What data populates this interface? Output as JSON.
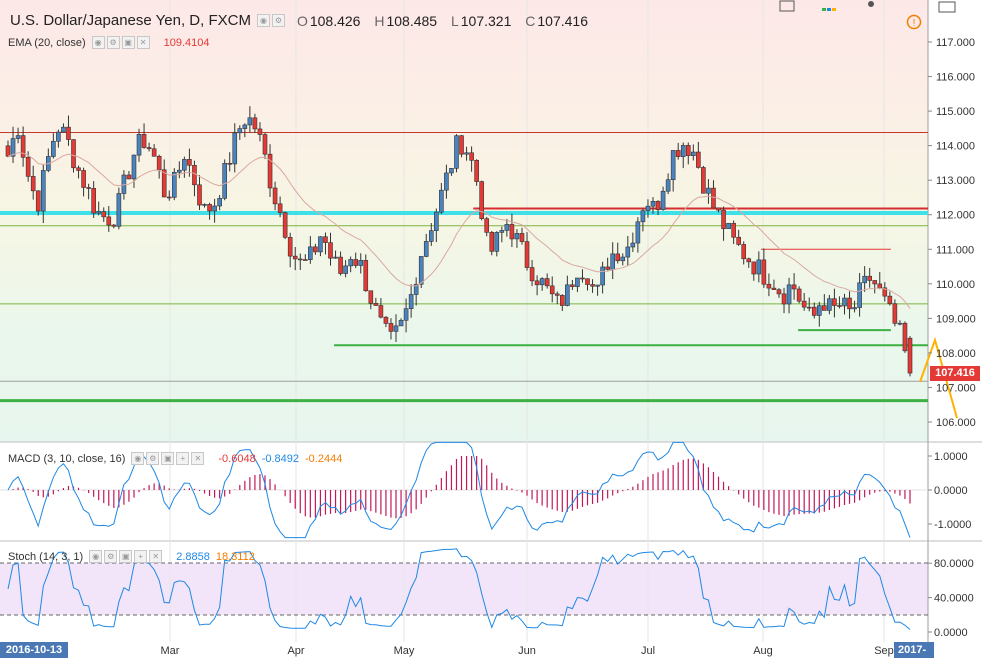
{
  "header": {
    "symbol": "U.S. Dollar/Japanese Yen, D, FXCM",
    "o_label": "O",
    "o": "108.426",
    "h_label": "H",
    "h": "108.485",
    "l_label": "L",
    "l": "107.321",
    "c_label": "C",
    "c": "107.416"
  },
  "ema": {
    "label": "EMA (20, close)",
    "value": "109.4104",
    "color": "#e53935"
  },
  "macd": {
    "label": "MACD (3, 10, close, 16)",
    "v1": "-0.6048",
    "v2": "-0.8492",
    "v3": "-0.2444",
    "c1": "#e53935",
    "c2": "#1e88e5",
    "c3": "#f57c00"
  },
  "stoch": {
    "label": "Stoch (14, 3, 1)",
    "v1": "2.8858",
    "v2": "18.3112",
    "c1": "#1e88e5",
    "c2": "#f57c00"
  },
  "price_badge": "107.416",
  "date_badge": "2016-10-13",
  "date_badge_right": "2017-",
  "colors": {
    "up": "#4a84c0",
    "down": "#e53935",
    "ema": "#d9a8a0",
    "macd_line": "#1e88e5",
    "hist": "#c2185b",
    "stoch": "#1e88e5",
    "cyan": "#40e0e8",
    "green": "#3cb043",
    "red": "#d32f2f",
    "orange": "#ffb300"
  },
  "chart_data": {
    "type": "candlestick",
    "price_axis": [
      "117.000",
      "116.000",
      "115.000",
      "114.000",
      "113.000",
      "112.000",
      "111.000",
      "110.000",
      "109.000",
      "108.000",
      "107.000",
      "106.000"
    ],
    "macd_axis": [
      "1.0000",
      "0.0000",
      "-1.0000"
    ],
    "stoch_axis": [
      "80.0000",
      "40.0000",
      "0.0000"
    ],
    "x_labels": [
      "Mar",
      "Apr",
      "May",
      "Jun",
      "Jul",
      "Aug",
      "Sep"
    ],
    "ylim": [
      105.5,
      117.4
    ],
    "horizontal_levels": [
      {
        "price": 114.38,
        "color": "#c0392b",
        "width": 1
      },
      {
        "price": 112.05,
        "color": "#40e0e8",
        "width": 4
      },
      {
        "price": 111.68,
        "color": "#7cb342",
        "width": 1
      },
      {
        "price": 109.42,
        "color": "#7cb342",
        "width": 1
      },
      {
        "price": 107.18,
        "color": "#9e9e9e",
        "width": 1
      },
      {
        "price": 106.62,
        "color": "#3cb043",
        "width": 3
      }
    ],
    "trend_segments": [
      {
        "from": [
          0.51,
          112.18
        ],
        "to": [
          1.0,
          112.18
        ],
        "color": "#d32f2f",
        "width": 2
      },
      {
        "from": [
          0.82,
          111.0
        ],
        "to": [
          0.96,
          111.0
        ],
        "color": "#e53935",
        "width": 1
      },
      {
        "from": [
          0.36,
          108.22
        ],
        "to": [
          1.0,
          108.22
        ],
        "color": "#3cb043",
        "width": 2
      },
      {
        "from": [
          0.86,
          108.66
        ],
        "to": [
          0.96,
          108.66
        ],
        "color": "#3cb043",
        "width": 2
      }
    ],
    "close_path": [
      113.7,
      114.6,
      113.2,
      112.3,
      113.5,
      114.6,
      114.2,
      113.4,
      112.8,
      112.1,
      111.9,
      112.0,
      113.0,
      113.9,
      114.2,
      113.6,
      112.6,
      112.9,
      113.8,
      113.0,
      112.1,
      112.3,
      113.1,
      114.0,
      114.8,
      114.7,
      113.9,
      112.7,
      111.9,
      110.9,
      110.5,
      110.8,
      111.5,
      110.7,
      110.3,
      110.9,
      110.5,
      109.6,
      108.8,
      108.3,
      108.7,
      109.5,
      110.8,
      111.6,
      112.4,
      113.3,
      114.2,
      113.8,
      112.8,
      110.8,
      111.3,
      111.8,
      111.2,
      110.6,
      110.2,
      109.8,
      109.4,
      109.7,
      110.5,
      110.4,
      109.6,
      110.6,
      111.0,
      110.9,
      111.7,
      112.5,
      112.1,
      113.1,
      113.9,
      114.1,
      113.8,
      112.9,
      112.2,
      111.7,
      111.2,
      110.9,
      110.6,
      110.3,
      110.1,
      109.7,
      110.0,
      109.4,
      108.9,
      109.6,
      109.2,
      109.4,
      109.1,
      109.8,
      110.2,
      109.7,
      109.1,
      108.5,
      107.4
    ]
  }
}
